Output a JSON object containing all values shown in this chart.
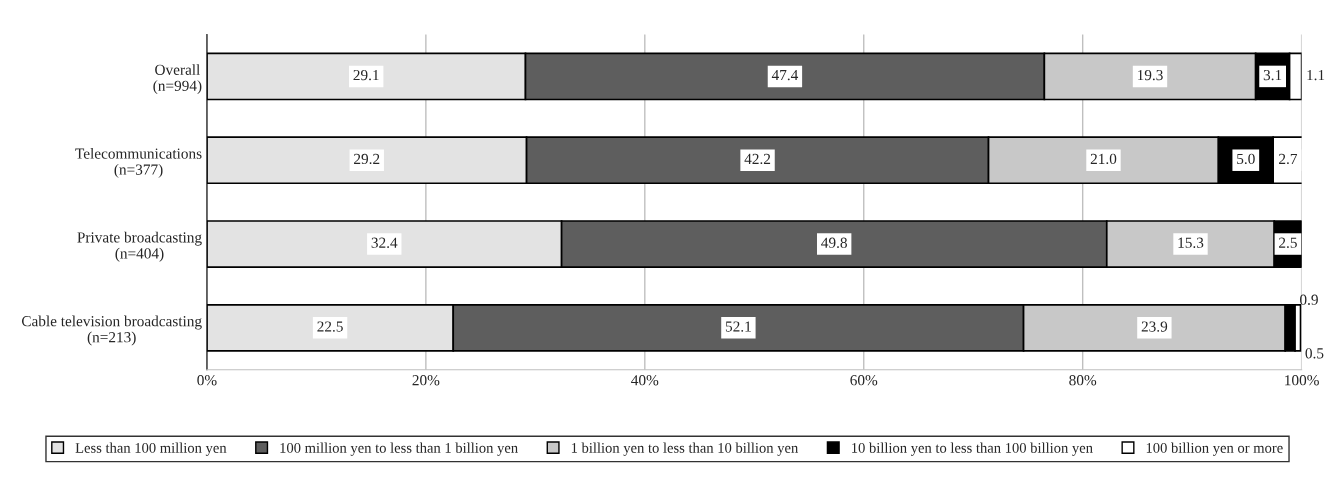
{
  "chart_data": {
    "type": "bar",
    "orientation": "horizontal",
    "stacked": true,
    "categories": [
      "Overall\n(n=994)",
      "Telecommunications\n(n=377)",
      "Private broadcasting\n(n=404)",
      "Cable television broadcasting\n(n=213)"
    ],
    "series": [
      {
        "name": "Less than 100 million yen",
        "color": "#e3e3e3",
        "values": [
          29.1,
          29.2,
          32.4,
          22.5
        ],
        "value_labels": [
          "29.1",
          "29.2",
          "32.4",
          "22.5"
        ]
      },
      {
        "name": "100 million yen to less than 1 billion yen",
        "color": "#5e5e5e",
        "values": [
          47.4,
          42.2,
          49.8,
          52.1
        ],
        "value_labels": [
          "47.4",
          "42.2",
          "49.8",
          "52.1"
        ]
      },
      {
        "name": "1 billion yen to less than 10 billion yen",
        "color": "#c8c8c8",
        "values": [
          19.3,
          21.0,
          15.3,
          23.9
        ],
        "value_labels": [
          "19.3",
          "21.0",
          "15.3",
          "23.9"
        ]
      },
      {
        "name": "10 billion yen to less than 100 billion yen",
        "color": "#000000",
        "values": [
          3.1,
          5.0,
          2.5,
          0.9
        ],
        "value_labels": [
          "3.1",
          "5.0",
          "2.5",
          "0.9"
        ]
      },
      {
        "name": "100 billion yen or more",
        "color": "#ffffff",
        "values": [
          1.1,
          2.7,
          null,
          0.5
        ],
        "value_labels": [
          "1.1",
          "2.7",
          null,
          "0.5"
        ]
      }
    ],
    "xlim": [
      0,
      100
    ],
    "xticks": [
      {
        "value": 0,
        "label": "0%"
      },
      {
        "value": 20,
        "label": "20%"
      },
      {
        "value": 40,
        "label": "40%"
      },
      {
        "value": 60,
        "label": "60%"
      },
      {
        "value": 80,
        "label": "80%"
      },
      {
        "value": 100,
        "label": "100%"
      }
    ],
    "grid": "x",
    "legend": "bottom"
  }
}
